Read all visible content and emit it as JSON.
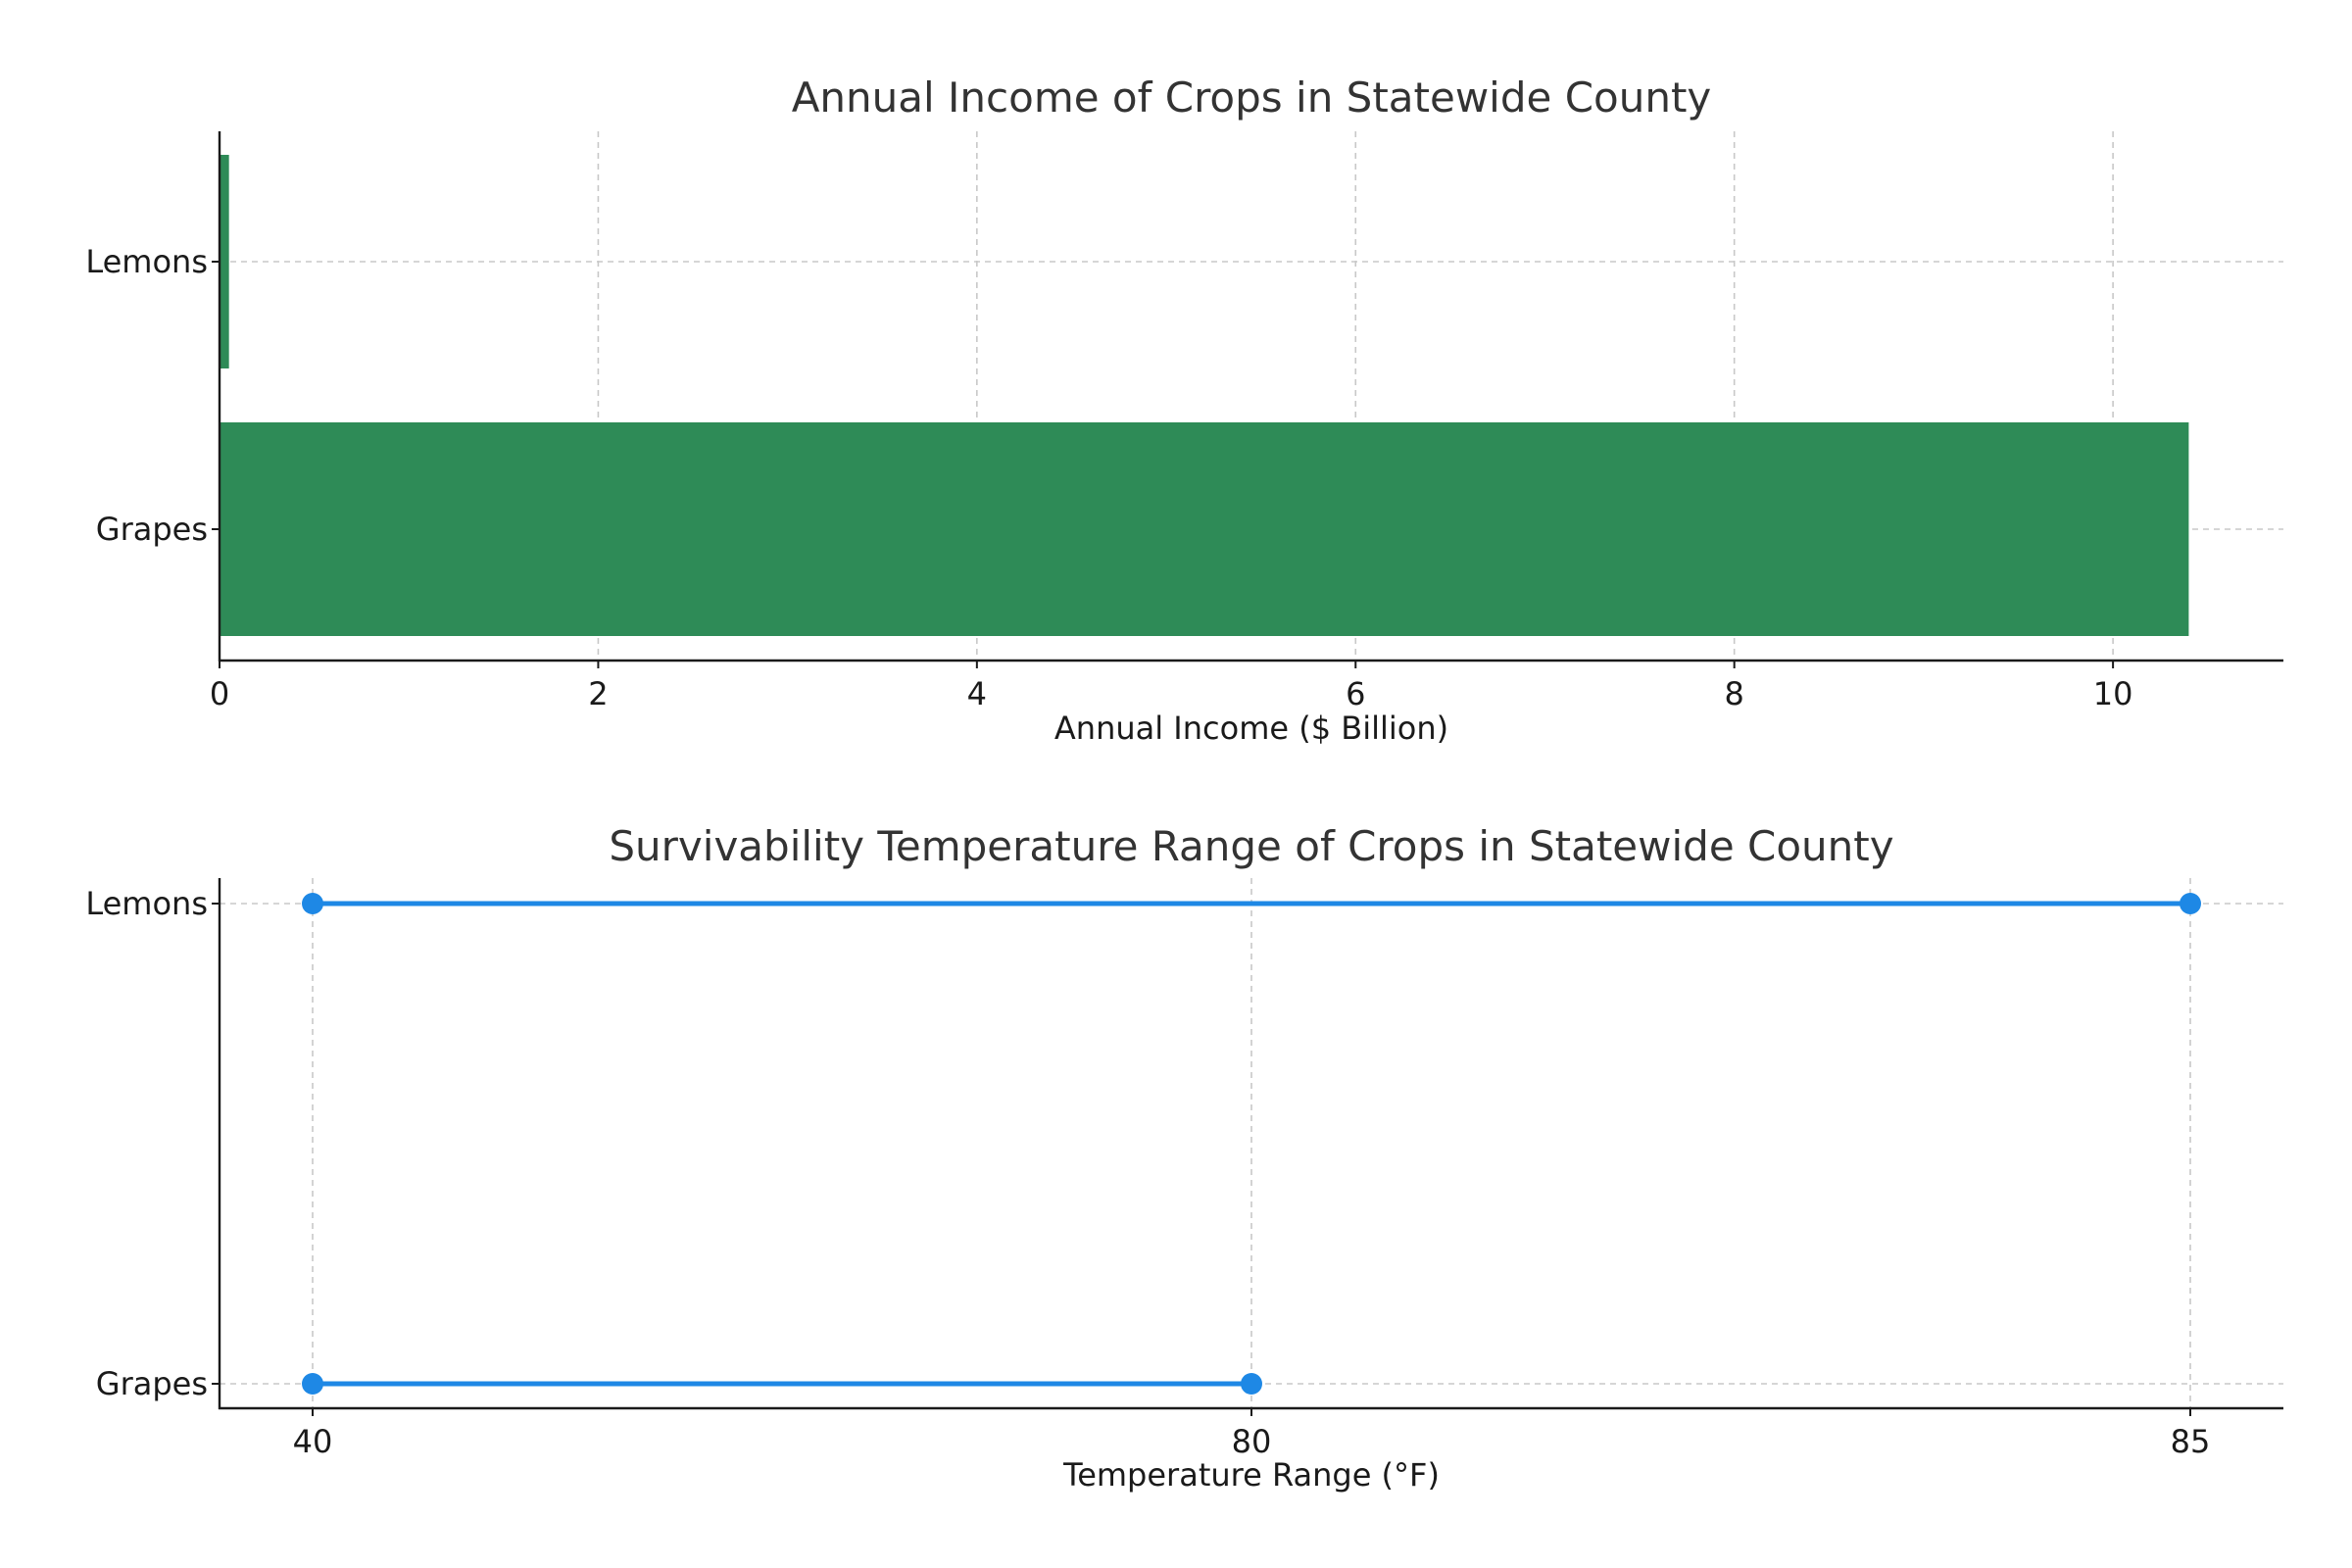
{
  "chart_data": [
    {
      "type": "bar",
      "orientation": "horizontal",
      "title": "Annual Income of Crops in Statewide County",
      "xlabel": "Annual Income ($ Billion)",
      "ylabel": "",
      "categories": [
        "Grapes",
        "Lemons"
      ],
      "values": [
        10.4,
        0.05
      ],
      "xlim": [
        0,
        10.9
      ],
      "xticks": [
        0,
        2,
        4,
        6,
        8,
        10
      ],
      "grid": true,
      "bar_color": "#2e8b57"
    },
    {
      "type": "line",
      "subtype": "range",
      "title": "Survivability Temperature Range of Crops in Statewide County",
      "xlabel": "Temperature Range (°F)",
      "ylabel": "",
      "categories": [
        "Grapes",
        "Lemons"
      ],
      "ranges": [
        {
          "category": "Grapes",
          "low": 40,
          "high": 80
        },
        {
          "category": "Lemons",
          "low": 40,
          "high": 85
        }
      ],
      "xtick_labels": [
        "40",
        "80",
        "85"
      ],
      "grid": true,
      "line_color": "#1e88e5"
    }
  ]
}
